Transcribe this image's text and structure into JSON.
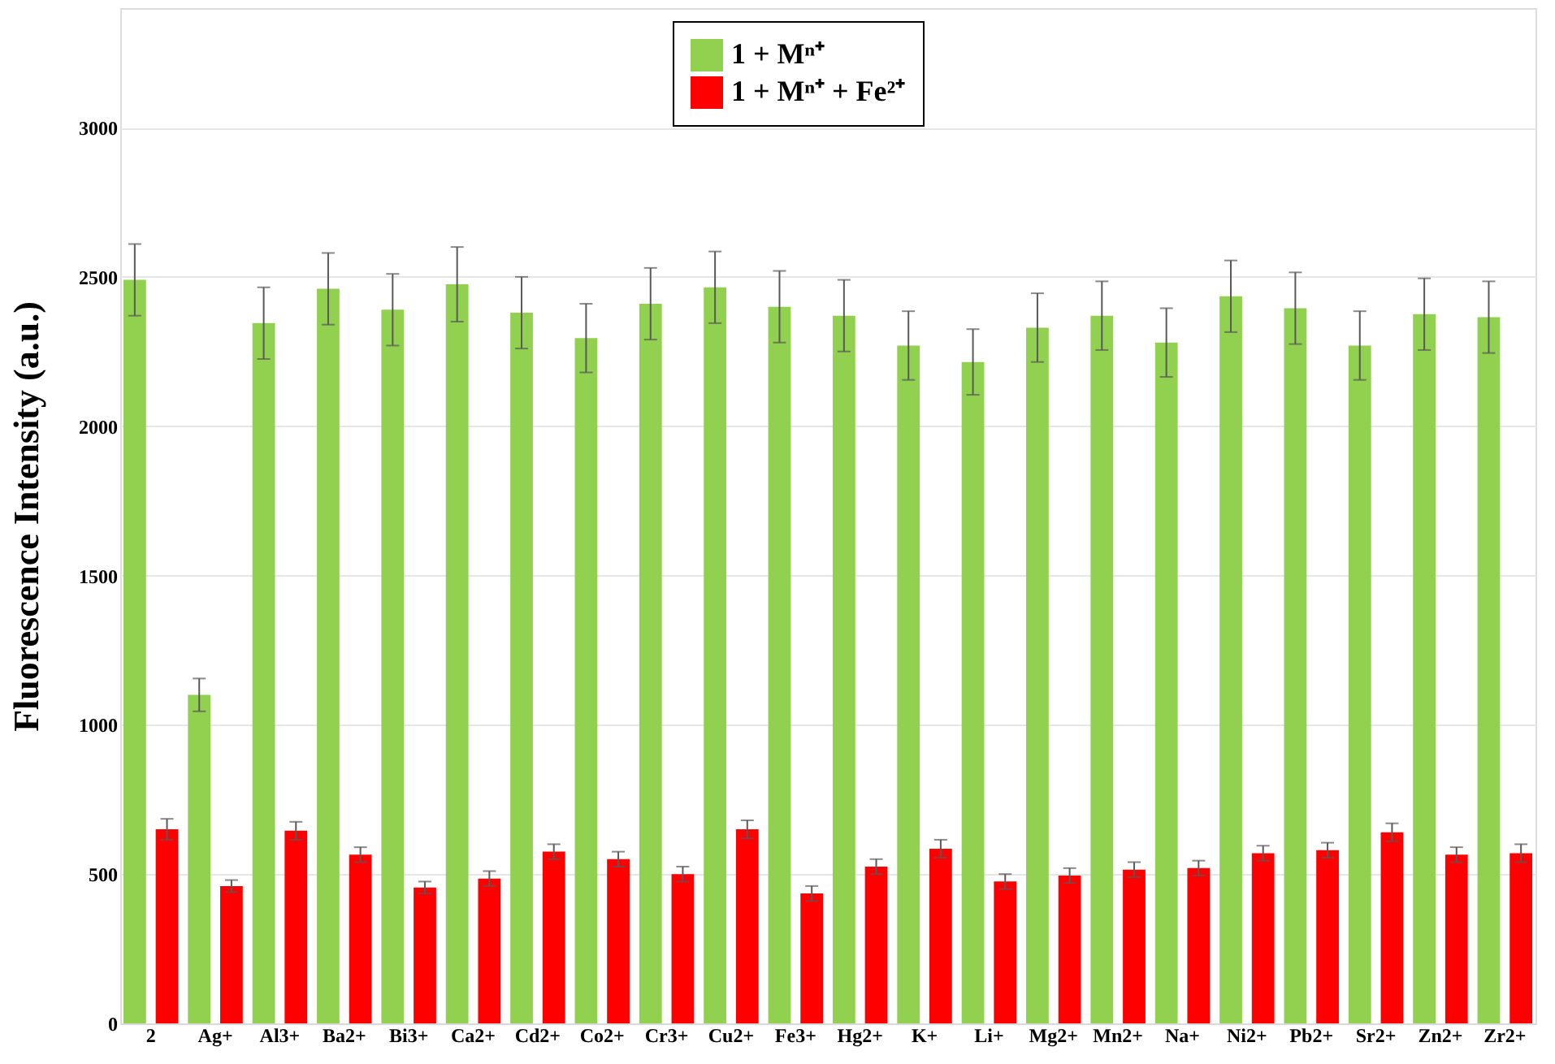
{
  "chart_data": {
    "type": "bar",
    "ylabel": "Fluorescence Intensity (a.u.)",
    "categories": [
      "2",
      "Ag+",
      "Al3+",
      "Ba2+",
      "Bi3+",
      "Ca2+",
      "Cd2+",
      "Co2+",
      "Cr3+",
      "Cu2+",
      "Fe3+",
      "Hg2+",
      "K+",
      "Li+",
      "Mg2+",
      "Mn2+",
      "Na+",
      "Ni2+",
      "Pb2+",
      "Sr2+",
      "Zn2+",
      "Zr2+"
    ],
    "series": [
      {
        "name": "1 + Mⁿ⁺",
        "color": "#92d050",
        "values": [
          2490,
          1100,
          2345,
          2460,
          2390,
          2475,
          2380,
          2295,
          2410,
          2465,
          2400,
          2370,
          2270,
          2215,
          2330,
          2370,
          2280,
          2435,
          2395,
          2270,
          2375,
          2365
        ],
        "errors": [
          120,
          55,
          120,
          120,
          120,
          125,
          120,
          115,
          120,
          120,
          120,
          120,
          115,
          110,
          115,
          115,
          115,
          120,
          120,
          115,
          120,
          120
        ]
      },
      {
        "name": "1 + Mⁿ⁺ + Fe²⁺",
        "color": "#ff0000",
        "values": [
          650,
          460,
          645,
          565,
          455,
          485,
          575,
          550,
          500,
          650,
          435,
          525,
          585,
          475,
          495,
          515,
          520,
          570,
          580,
          640,
          565,
          570
        ],
        "errors": [
          35,
          20,
          30,
          25,
          20,
          25,
          25,
          25,
          25,
          30,
          25,
          25,
          30,
          25,
          25,
          25,
          25,
          25,
          25,
          30,
          25,
          30
        ]
      }
    ],
    "ylim": [
      0,
      3400
    ],
    "yticks": [
      0,
      500,
      1000,
      1500,
      2000,
      2500,
      3000
    ],
    "grid": "y",
    "legend": "top"
  }
}
